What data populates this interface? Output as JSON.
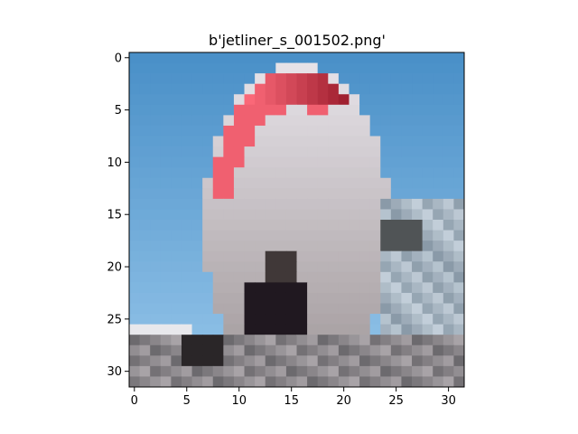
{
  "title": "b'jetliner_s_001502.png'",
  "image": {
    "description_note_free": true,
    "grid_size": [
      32,
      32
    ],
    "palette": {
      "sky": "#4a90c8",
      "sky_light": "#8ec0e6",
      "red": "#f06070",
      "white": "#e8e4ea",
      "grey": "#a29a9c",
      "dark": "#201820",
      "ground": "#6c6a6e"
    }
  },
  "axes": {
    "x_ticks": [
      "0",
      "5",
      "10",
      "15",
      "20",
      "25",
      "30"
    ],
    "y_ticks": [
      "0",
      "5",
      "10",
      "15",
      "20",
      "25",
      "30"
    ]
  }
}
